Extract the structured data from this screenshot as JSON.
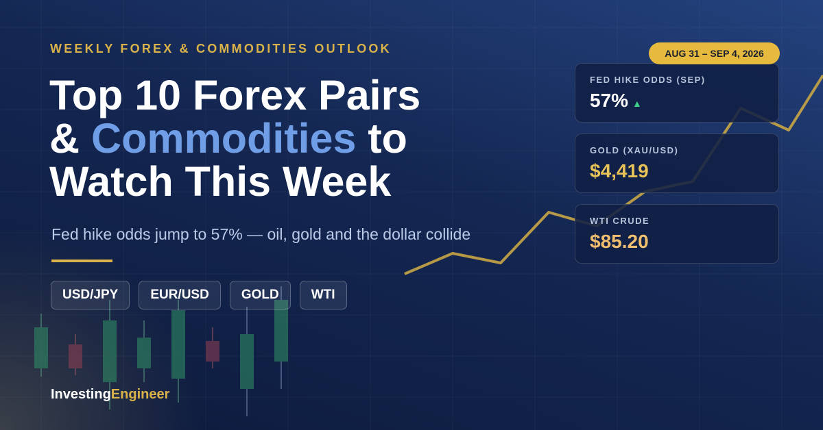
{
  "eyebrow": "WEEKLY FOREX & COMMODITIES OUTLOOK",
  "title": {
    "line1": "Top 10 Forex Pairs",
    "line2_prefix": "&",
    "line2_highlight": "Commodities",
    "line2_suffix": "to",
    "line3": "Watch This Week"
  },
  "subtitle": "Fed hike odds jump to 57% — oil, gold and the dollar collide",
  "tags": [
    "USD/JPY",
    "EUR/USD",
    "GOLD",
    "WTI"
  ],
  "date_badge": "AUG 31 – SEP 4, 2026",
  "cards": [
    {
      "label": "FED HIKE ODDS (SEP)",
      "value": "57%",
      "trend": "▲"
    },
    {
      "label": "GOLD (XAU/USD)",
      "value": "$4,419"
    },
    {
      "label": "WTI CRUDE",
      "value": "$85.20"
    }
  ],
  "brand": {
    "part1": "Investing",
    "part2": "Engineer"
  }
}
